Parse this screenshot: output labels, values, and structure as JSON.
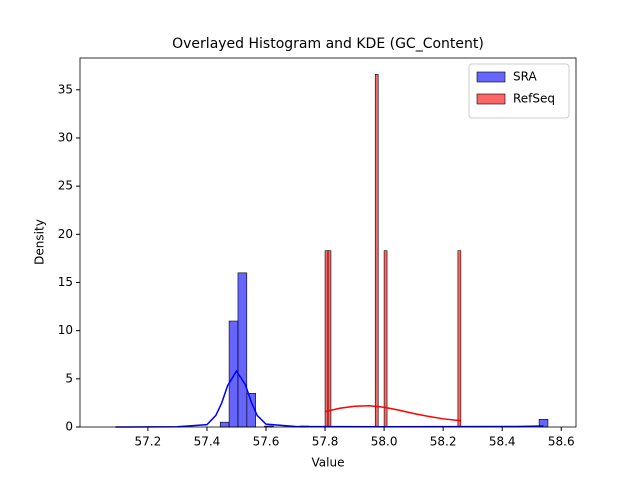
{
  "chart_data": {
    "type": "histogram",
    "title": "Overlayed Histogram and KDE (GC_Content)",
    "x_label": "Value",
    "y_label": "Density",
    "xlim": [
      56.97,
      58.65
    ],
    "ylim": [
      0,
      38.3
    ],
    "xticks": [
      57.2,
      57.4,
      57.6,
      57.8,
      {
        "value": 58,
        "label": "58.0"
      },
      58.2,
      58.4,
      58.6
    ],
    "yticks": [
      0,
      5,
      10,
      15,
      20,
      25,
      30,
      35
    ],
    "legend": "upper right",
    "series": [
      {
        "name": "SRA",
        "color": "#0000ff",
        "alpha": 0.6,
        "line_color": "#0000ff",
        "bins": [
          57.085,
          57.115,
          57.145,
          57.175,
          57.205,
          57.235,
          57.265,
          57.295,
          57.325,
          57.355,
          57.385,
          57.415,
          57.445,
          57.475,
          57.505,
          57.535,
          57.565,
          57.595,
          57.625,
          57.655,
          57.685,
          57.715,
          57.745,
          57.775,
          57.805,
          57.835,
          57.865,
          57.895,
          57.925,
          57.955,
          57.985,
          58.015,
          58.045,
          58.075,
          58.105,
          58.135,
          58.165,
          58.195,
          58.225,
          58.255,
          58.285,
          58.315,
          58.345,
          58.375,
          58.405,
          58.435,
          58.465,
          58.495,
          58.525,
          58.555
        ],
        "values": [
          0,
          0,
          0,
          0,
          0,
          0,
          0,
          0,
          0,
          0,
          0,
          0,
          0.5,
          11,
          16,
          3.5,
          0,
          0.1,
          0,
          0,
          0,
          0.1,
          0,
          0,
          0,
          0,
          0,
          0,
          0,
          0,
          0,
          0,
          0,
          0,
          0,
          0,
          0,
          0,
          0,
          0,
          0,
          0,
          0,
          0,
          0,
          0,
          0,
          0,
          0.8
        ],
        "kde_x": [
          57.09,
          57.3,
          57.4,
          57.43,
          57.45,
          57.47,
          57.5,
          57.53,
          57.55,
          57.57,
          57.6,
          57.7,
          58.0,
          58.45,
          58.54
        ],
        "kde_y": [
          0,
          0.02,
          0.25,
          1.2,
          2.5,
          4.3,
          5.8,
          4.4,
          2.6,
          1.2,
          0.3,
          0.05,
          0.02,
          0.05,
          0.1
        ]
      },
      {
        "name": "RefSeq",
        "color": "#ff0000",
        "alpha": 0.6,
        "line_color": "#ff0000",
        "bins": [
          57.8,
          57.81,
          57.82,
          57.83,
          57.84,
          57.85,
          57.86,
          57.87,
          57.88,
          57.89,
          57.9,
          57.91,
          57.92,
          57.93,
          57.94,
          57.95,
          57.96,
          57.97,
          57.98,
          57.99,
          58.0,
          58.01,
          58.02,
          58.03,
          58.04,
          58.05,
          58.06,
          58.07,
          58.08,
          58.09,
          58.1,
          58.11,
          58.12,
          58.13,
          58.14,
          58.15,
          58.16,
          58.17,
          58.18,
          58.19,
          58.2,
          58.21,
          58.22,
          58.23,
          58.24,
          58.25,
          58.26
        ],
        "values": [
          18.3,
          18.3,
          0,
          0,
          0,
          0,
          0,
          0,
          0,
          0,
          0,
          0,
          0,
          0,
          0,
          0,
          0,
          36.6,
          0,
          0,
          18.3,
          0,
          0,
          0,
          0,
          0,
          0,
          0,
          0,
          0,
          0,
          0,
          0,
          0,
          0,
          0,
          0,
          0,
          0,
          0,
          0,
          0,
          0,
          0,
          0,
          18.3
        ],
        "kde_x": [
          57.8,
          57.85,
          57.9,
          57.95,
          58.0,
          58.05,
          58.1,
          58.15,
          58.2,
          58.26
        ],
        "kde_y": [
          1.6,
          1.95,
          2.15,
          2.2,
          2.05,
          1.75,
          1.4,
          1.1,
          0.85,
          0.65
        ]
      }
    ]
  }
}
